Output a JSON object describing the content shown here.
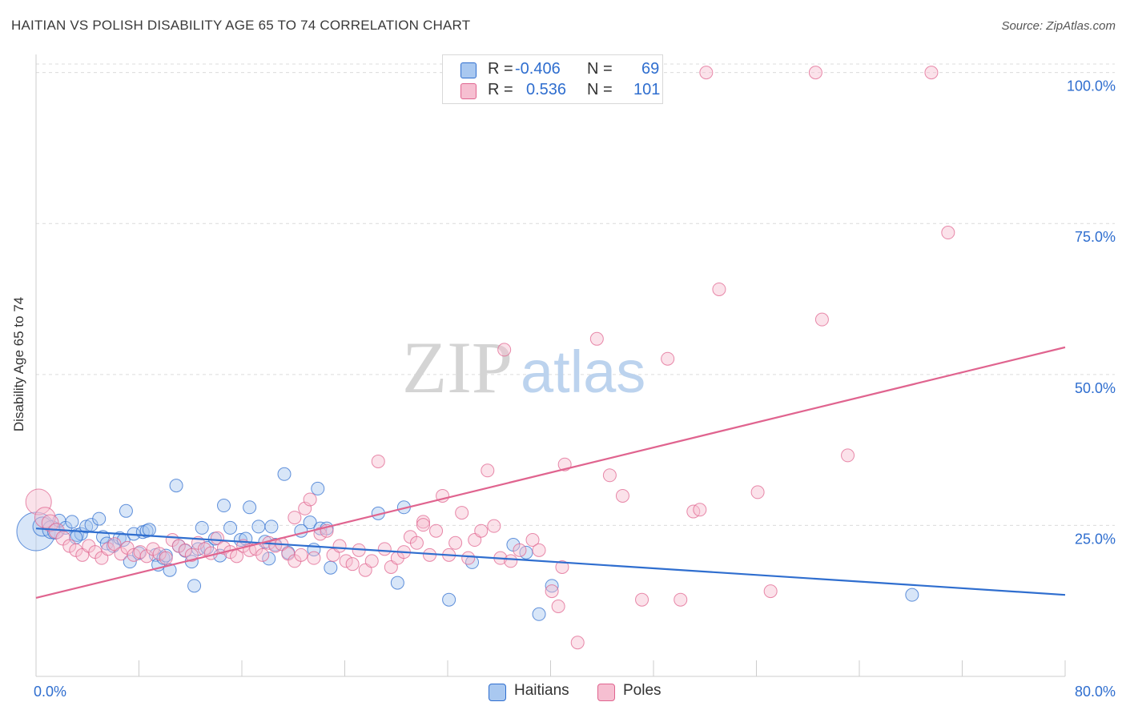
{
  "title": "HAITIAN VS POLISH DISABILITY AGE 65 TO 74 CORRELATION CHART",
  "source": "Source: ZipAtlas.com",
  "colors": {
    "blue": "#2f6ecf",
    "blue_fill": "#a9c8f0",
    "pink": "#e0648f",
    "pink_fill": "#f6bfd1",
    "value_text": "#2f6ecf",
    "grid": "#dcdcdc"
  },
  "legend": {
    "rows": [
      {
        "r_label": "R =",
        "r_value": "-0.406",
        "n_label": "N =",
        "n_value": "69"
      },
      {
        "r_label": "R =",
        "r_value": "0.536",
        "n_label": "N =",
        "n_value": "101"
      }
    ]
  },
  "bottom_legend": {
    "haitians": "Haitians",
    "poles": "Poles"
  },
  "chart_data": {
    "type": "scatter",
    "xlabel": "",
    "ylabel": "Disability Age 65 to 74",
    "xlim": [
      0,
      80
    ],
    "ylim": [
      0,
      103
    ],
    "x_tick_labels": [
      "0.0%",
      "80.0%"
    ],
    "y_tick_labels": [
      "100.0%",
      "75.0%",
      "50.0%",
      "25.0%"
    ],
    "y_ticks": [
      100,
      75,
      50,
      25
    ],
    "grid": true,
    "legend_position": "top-center",
    "watermark": "ZIPatlas",
    "series": [
      {
        "name": "Haitians",
        "r": -0.406,
        "n": 69,
        "trend": {
          "x0": 0,
          "y0": 24.5,
          "x1": 80,
          "y1": 13.5
        },
        "points": [
          [
            0.0,
            24.0,
            3
          ],
          [
            0.5,
            24.8,
            1.5
          ],
          [
            1.2,
            24.3,
            1.4
          ],
          [
            1.5,
            24.0,
            1.2
          ],
          [
            1.8,
            25.8,
            1
          ],
          [
            2.3,
            24.6,
            1
          ],
          [
            2.8,
            25.6,
            1
          ],
          [
            3.2,
            23.4,
            1
          ],
          [
            3.5,
            23.6,
            1
          ],
          [
            3.9,
            24.8,
            1
          ],
          [
            4.3,
            25.1,
            1
          ],
          [
            4.9,
            26.1,
            1
          ],
          [
            5.2,
            23.1,
            1
          ],
          [
            5.5,
            22.0,
            1
          ],
          [
            6.0,
            21.6,
            1
          ],
          [
            6.5,
            22.9,
            1
          ],
          [
            6.8,
            22.6,
            1
          ],
          [
            7.0,
            27.4,
            1
          ],
          [
            7.3,
            19.0,
            1
          ],
          [
            7.6,
            23.6,
            1
          ],
          [
            8.0,
            20.4,
            1
          ],
          [
            8.3,
            23.9,
            1
          ],
          [
            8.6,
            24.1,
            1
          ],
          [
            8.8,
            24.3,
            1
          ],
          [
            9.3,
            20.1,
            1
          ],
          [
            9.5,
            18.5,
            1
          ],
          [
            9.9,
            19.6,
            1
          ],
          [
            10.4,
            17.6,
            1
          ],
          [
            10.9,
            31.6,
            1
          ],
          [
            11.1,
            21.6,
            1
          ],
          [
            11.6,
            20.8,
            1
          ],
          [
            12.1,
            19.0,
            1
          ],
          [
            12.3,
            15.0,
            1
          ],
          [
            12.6,
            21.1,
            1
          ],
          [
            12.9,
            24.6,
            1
          ],
          [
            13.3,
            21.3,
            1
          ],
          [
            13.9,
            22.8,
            1
          ],
          [
            14.3,
            20.0,
            1
          ],
          [
            14.6,
            28.3,
            1
          ],
          [
            15.1,
            24.6,
            1
          ],
          [
            15.9,
            22.6,
            1
          ],
          [
            16.3,
            22.8,
            1
          ],
          [
            16.6,
            28.0,
            1
          ],
          [
            17.3,
            24.8,
            1
          ],
          [
            17.8,
            22.3,
            1
          ],
          [
            18.1,
            19.5,
            1
          ],
          [
            18.3,
            24.8,
            1
          ],
          [
            18.6,
            21.8,
            1
          ],
          [
            19.3,
            33.5,
            1
          ],
          [
            19.6,
            20.5,
            1
          ],
          [
            21.3,
            25.5,
            1
          ],
          [
            21.6,
            21.0,
            1
          ],
          [
            22.1,
            24.5,
            1
          ],
          [
            22.6,
            24.5,
            1
          ],
          [
            21.9,
            31.1,
            1
          ],
          [
            22.9,
            18.0,
            1
          ],
          [
            26.6,
            27.0,
            1
          ],
          [
            28.6,
            28.0,
            1
          ],
          [
            28.1,
            15.5,
            1
          ],
          [
            32.1,
            12.7,
            1
          ],
          [
            33.9,
            18.9,
            1
          ],
          [
            37.1,
            21.8,
            1
          ],
          [
            38.1,
            20.5,
            1
          ],
          [
            40.1,
            15.0,
            1
          ],
          [
            39.1,
            10.3,
            1
          ],
          [
            68.1,
            13.5,
            1
          ],
          [
            3.1,
            23.0,
            1
          ],
          [
            10.1,
            20.0,
            1
          ],
          [
            20.6,
            24.1,
            1
          ]
        ]
      },
      {
        "name": "Poles",
        "r": 0.536,
        "n": 101,
        "trend": {
          "x0": 0,
          "y0": 13.0,
          "x1": 80,
          "y1": 54.5
        },
        "points": [
          [
            0.2,
            28.9,
            2
          ],
          [
            0.7,
            26.3,
            1.6
          ],
          [
            1.1,
            25.4,
            1.3
          ],
          [
            1.6,
            24.1,
            1.2
          ],
          [
            2.1,
            22.9,
            1.1
          ],
          [
            2.6,
            21.6,
            1
          ],
          [
            3.1,
            20.9,
            1
          ],
          [
            3.6,
            20.1,
            1
          ],
          [
            4.1,
            21.6,
            1
          ],
          [
            4.6,
            20.6,
            1
          ],
          [
            5.1,
            19.6,
            1
          ],
          [
            5.6,
            21.1,
            1
          ],
          [
            6.1,
            21.9,
            1
          ],
          [
            6.6,
            20.3,
            1
          ],
          [
            7.1,
            21.3,
            1
          ],
          [
            7.6,
            20.1,
            1
          ],
          [
            8.1,
            20.6,
            1
          ],
          [
            8.6,
            19.9,
            1
          ],
          [
            9.1,
            21.1,
            1
          ],
          [
            9.6,
            20.3,
            1
          ],
          [
            10.1,
            19.6,
            1
          ],
          [
            10.6,
            22.6,
            1
          ],
          [
            11.1,
            21.6,
            1
          ],
          [
            11.6,
            20.9,
            1
          ],
          [
            12.1,
            20.1,
            1
          ],
          [
            12.6,
            22.1,
            1
          ],
          [
            13.1,
            21.1,
            1
          ],
          [
            13.6,
            20.4,
            1
          ],
          [
            14.1,
            22.9,
            1
          ],
          [
            14.6,
            21.3,
            1
          ],
          [
            15.1,
            20.6,
            1
          ],
          [
            15.6,
            19.9,
            1
          ],
          [
            16.1,
            21.6,
            1
          ],
          [
            16.6,
            20.9,
            1
          ],
          [
            17.1,
            21.1,
            1
          ],
          [
            17.6,
            20.1,
            1
          ],
          [
            18.1,
            22.1,
            1
          ],
          [
            18.6,
            21.6,
            1
          ],
          [
            19.1,
            21.9,
            1
          ],
          [
            19.6,
            20.3,
            1
          ],
          [
            20.1,
            19.1,
            1
          ],
          [
            20.6,
            20.1,
            1
          ],
          [
            20.1,
            26.3,
            1
          ],
          [
            20.9,
            27.8,
            1
          ],
          [
            21.3,
            29.3,
            1
          ],
          [
            21.6,
            19.6,
            1
          ],
          [
            22.1,
            23.6,
            1
          ],
          [
            22.6,
            24.1,
            1
          ],
          [
            23.1,
            20.1,
            1
          ],
          [
            23.6,
            21.6,
            1
          ],
          [
            24.1,
            19.1,
            1
          ],
          [
            24.6,
            18.6,
            1
          ],
          [
            25.1,
            20.9,
            1
          ],
          [
            25.6,
            17.6,
            1
          ],
          [
            26.1,
            19.1,
            1
          ],
          [
            26.6,
            35.6,
            1
          ],
          [
            27.1,
            21.1,
            1
          ],
          [
            27.6,
            18.1,
            1
          ],
          [
            28.1,
            19.6,
            1
          ],
          [
            28.6,
            20.6,
            1
          ],
          [
            29.1,
            23.1,
            1
          ],
          [
            29.6,
            22.1,
            1
          ],
          [
            30.1,
            25.6,
            1
          ],
          [
            30.6,
            20.1,
            1
          ],
          [
            31.1,
            24.1,
            1
          ],
          [
            31.6,
            29.9,
            1
          ],
          [
            32.1,
            20.1,
            1
          ],
          [
            32.6,
            22.1,
            1
          ],
          [
            33.1,
            27.1,
            1
          ],
          [
            33.6,
            19.6,
            1
          ],
          [
            34.1,
            22.6,
            1
          ],
          [
            34.6,
            24.1,
            1
          ],
          [
            35.1,
            34.1,
            1
          ],
          [
            35.6,
            24.9,
            1
          ],
          [
            36.1,
            19.6,
            1
          ],
          [
            36.4,
            54.1,
            1
          ],
          [
            36.9,
            19.1,
            1
          ],
          [
            37.6,
            20.9,
            1
          ],
          [
            38.6,
            22.6,
            1
          ],
          [
            39.1,
            20.9,
            1
          ],
          [
            40.1,
            14.1,
            1
          ],
          [
            40.6,
            11.6,
            1
          ],
          [
            40.9,
            18.1,
            1
          ],
          [
            42.1,
            5.6,
            1
          ],
          [
            41.1,
            35.1,
            1
          ],
          [
            43.6,
            55.9,
            1
          ],
          [
            44.6,
            33.3,
            1
          ],
          [
            45.6,
            29.9,
            1
          ],
          [
            47.1,
            12.7,
            1
          ],
          [
            49.1,
            52.6,
            1
          ],
          [
            50.1,
            12.7,
            1
          ],
          [
            51.1,
            27.3,
            1
          ],
          [
            51.6,
            27.6,
            1
          ],
          [
            53.1,
            64.1,
            1
          ],
          [
            56.1,
            30.5,
            1
          ],
          [
            57.1,
            14.1,
            1
          ],
          [
            61.1,
            59.1,
            1
          ],
          [
            63.1,
            36.6,
            1
          ],
          [
            69.6,
            100.0,
            1
          ],
          [
            70.9,
            73.5,
            1
          ],
          [
            52.1,
            100.0,
            1
          ],
          [
            60.6,
            100.0,
            1
          ],
          [
            30.1,
            25.1,
            1
          ]
        ]
      }
    ]
  }
}
